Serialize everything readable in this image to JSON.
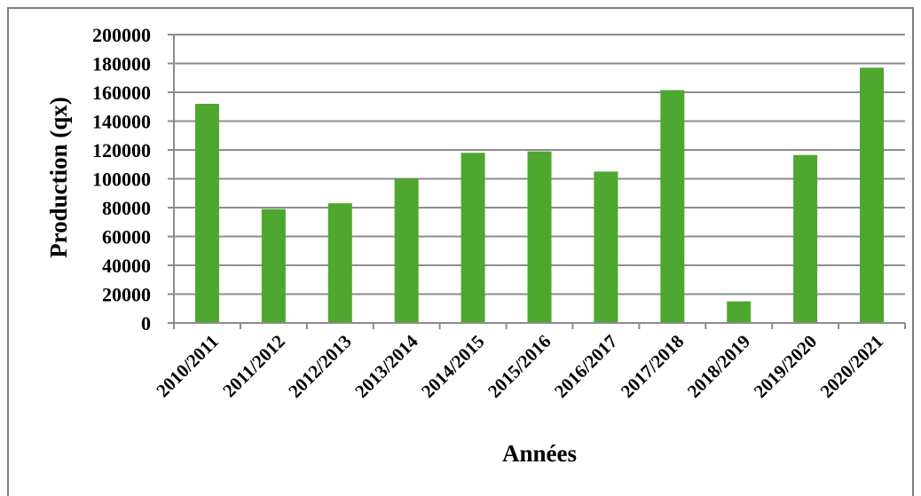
{
  "chart_data": {
    "type": "bar",
    "title": "",
    "xlabel": "Années",
    "ylabel": "Production (qx)",
    "ylim": [
      0,
      200000
    ],
    "yticks": [
      0,
      20000,
      40000,
      60000,
      80000,
      100000,
      120000,
      140000,
      160000,
      180000,
      200000
    ],
    "grid": true,
    "legend": "none",
    "categories": [
      "2010/2011",
      "2011/2012",
      "2012/2013",
      "2013/2014",
      "2014/2015",
      "2015/2016",
      "2016/2017",
      "2017/2018",
      "2018/2019",
      "2019/2020",
      "2020/2021"
    ],
    "series": [
      {
        "values": [
          152000,
          79000,
          83000,
          100000,
          118000,
          119000,
          105000,
          161500,
          15000,
          116500,
          177000
        ],
        "color": "#4ea72e"
      }
    ],
    "colors": {
      "bar": "#4ea72e",
      "grid": "#8c8c8c",
      "frame": "#7f7f7f"
    }
  }
}
